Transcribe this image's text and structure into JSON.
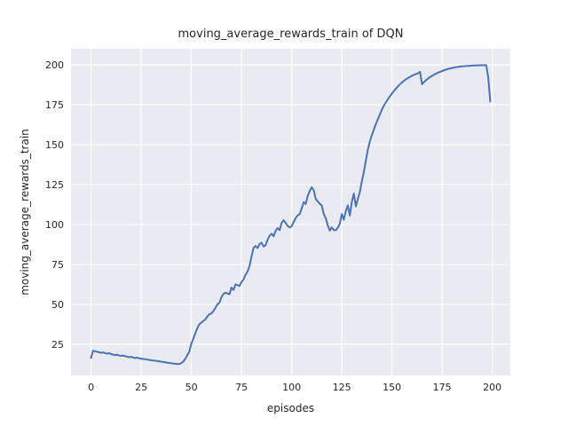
{
  "figure": {
    "kind": "matplotlib-seaborn-line-plot",
    "background": "#ffffff"
  },
  "chart_data": {
    "type": "line",
    "title": "moving_average_rewards_train of DQN",
    "xlabel": "episodes",
    "ylabel": "moving_average_rewards_train",
    "x_ticks": [
      0,
      25,
      50,
      75,
      100,
      125,
      150,
      175,
      200
    ],
    "y_ticks": [
      25,
      50,
      75,
      100,
      125,
      150,
      175,
      200
    ],
    "xlim": [
      -10,
      209
    ],
    "ylim": [
      5.5,
      210
    ],
    "grid": true,
    "legend_position": "none",
    "colors": {
      "line": "#4c72b0",
      "axes_background": "#eaeaf2",
      "grid": "#ffffff",
      "figure_background": "#ffffff",
      "text": "#262626"
    },
    "series": [
      {
        "name": "moving_average_rewards_train",
        "x_start": 0,
        "x_step": 1,
        "values": [
          16.4,
          21.0,
          20.6,
          20.3,
          20.0,
          19.7,
          19.9,
          19.5,
          19.1,
          19.4,
          18.9,
          18.5,
          18.2,
          18.5,
          18.0,
          17.7,
          18.0,
          17.5,
          17.2,
          16.9,
          17.1,
          16.7,
          16.4,
          16.6,
          16.2,
          16.0,
          15.8,
          15.6,
          15.4,
          15.2,
          15.0,
          14.8,
          14.7,
          14.5,
          14.3,
          14.1,
          13.9,
          13.7,
          13.5,
          13.3,
          13.1,
          12.9,
          12.8,
          12.6,
          12.7,
          13.2,
          14.2,
          16.0,
          18.3,
          20.4,
          25.5,
          28.5,
          32.0,
          35.2,
          37.6,
          38.6,
          39.6,
          40.6,
          42.5,
          43.8,
          44.3,
          45.8,
          47.8,
          50.0,
          51.0,
          54.5,
          56.5,
          57.3,
          56.8,
          56.3,
          60.5,
          59.0,
          62.5,
          62.0,
          61.5,
          64.0,
          65.5,
          68.5,
          70.5,
          74.0,
          80.0,
          85.3,
          86.5,
          85.2,
          87.8,
          88.6,
          86.2,
          87.0,
          90.5,
          93.0,
          94.2,
          92.6,
          96.0,
          97.8,
          96.4,
          101.0,
          102.7,
          101.0,
          99.1,
          98.1,
          99.0,
          101.5,
          104.0,
          105.7,
          106.5,
          110.0,
          114.0,
          112.8,
          117.8,
          121.0,
          123.3,
          121.5,
          116.0,
          114.5,
          113.0,
          112.0,
          106.5,
          104.0,
          99.5,
          96.2,
          98.2,
          96.5,
          96.4,
          98.0,
          100.5,
          106.5,
          103.0,
          108.3,
          112.0,
          105.6,
          114.0,
          119.4,
          111.3,
          116.0,
          120.4,
          127.0,
          133.0,
          140.0,
          147.0,
          152.0,
          156.0,
          159.5,
          163.0,
          166.0,
          169.0,
          172.0,
          174.5,
          176.5,
          178.5,
          180.3,
          182.0,
          183.6,
          185.1,
          186.5,
          187.8,
          189.0,
          190.0,
          190.9,
          191.7,
          192.4,
          193.1,
          193.7,
          194.2,
          194.7,
          195.6,
          187.8,
          189.2,
          190.4,
          191.4,
          192.3,
          193.1,
          193.8,
          194.5,
          195.1,
          195.6,
          196.1,
          196.6,
          197.0,
          197.4,
          197.7,
          198.0,
          198.3,
          198.5,
          198.7,
          198.9,
          199.0,
          199.1,
          199.2,
          199.3,
          199.4,
          199.5,
          199.55,
          199.6,
          199.65,
          199.7,
          199.72,
          199.75,
          199.78,
          192.0,
          177.0
        ]
      }
    ]
  }
}
